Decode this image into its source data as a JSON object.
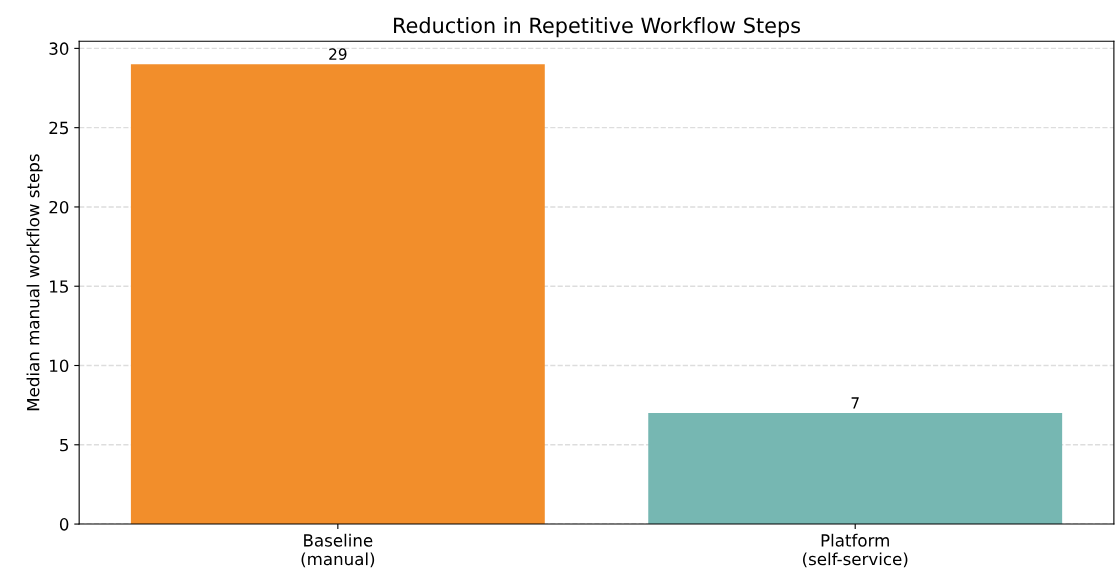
{
  "chart_data": {
    "type": "bar",
    "title": "Reduction in Repetitive Workflow Steps",
    "ylabel": "Median manual workflow steps",
    "categories": [
      "Baseline\n(manual)",
      "Platform\n(self-service)"
    ],
    "values": [
      29,
      7
    ],
    "colors": [
      "#f28e2b",
      "#76b7b2"
    ],
    "ylim": [
      0,
      30.45
    ],
    "yticks": [
      0,
      5,
      10,
      15,
      20,
      25,
      30
    ],
    "grid": "y",
    "data_labels": true
  }
}
